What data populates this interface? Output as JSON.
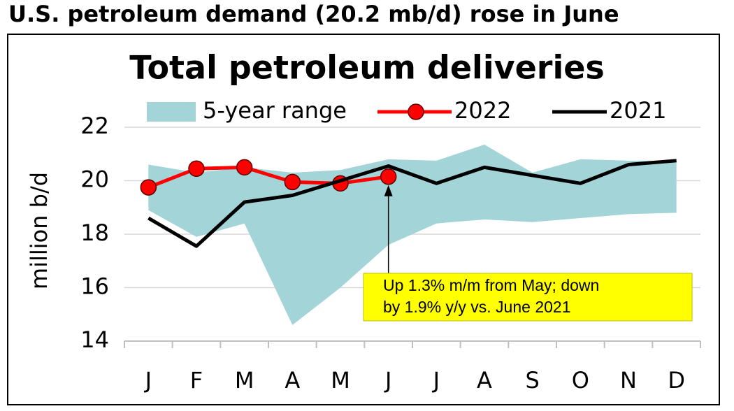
{
  "header": {
    "title": "U.S. petroleum demand (20.2 mb/d) rose in June"
  },
  "chart_data": {
    "type": "line",
    "title": "Total petroleum deliveries",
    "y_label": "million b/d",
    "categories": [
      "J",
      "F",
      "M",
      "A",
      "M",
      "J",
      "J",
      "A",
      "S",
      "O",
      "N",
      "D"
    ],
    "ylim": [
      14,
      22
    ],
    "yticks": [
      14,
      16,
      18,
      20,
      22
    ],
    "grid": true,
    "series": [
      {
        "name": "5-year range",
        "color": "#a3d4d8",
        "kind": "range",
        "high": [
          20.6,
          20.3,
          20.5,
          20.3,
          20.4,
          20.8,
          20.75,
          21.35,
          20.3,
          20.8,
          20.75,
          20.75
        ],
        "low": [
          18.9,
          17.9,
          18.4,
          14.6,
          16.0,
          17.6,
          18.4,
          18.55,
          18.45,
          18.6,
          18.75,
          18.8
        ]
      },
      {
        "name": "2022",
        "color": "#ff0000",
        "markers": true,
        "values": [
          19.75,
          20.45,
          20.5,
          19.95,
          19.9,
          20.15,
          null,
          null,
          null,
          null,
          null,
          null
        ]
      },
      {
        "name": "2021",
        "color": "#000000",
        "values": [
          18.6,
          17.55,
          19.2,
          19.45,
          20.0,
          20.55,
          19.9,
          20.5,
          20.2,
          19.9,
          20.6,
          20.75
        ]
      }
    ],
    "annotation": {
      "lines": [
        "Up 1.3% m/m from May; down",
        "by 1.9% y/y vs. June 2021"
      ]
    }
  }
}
